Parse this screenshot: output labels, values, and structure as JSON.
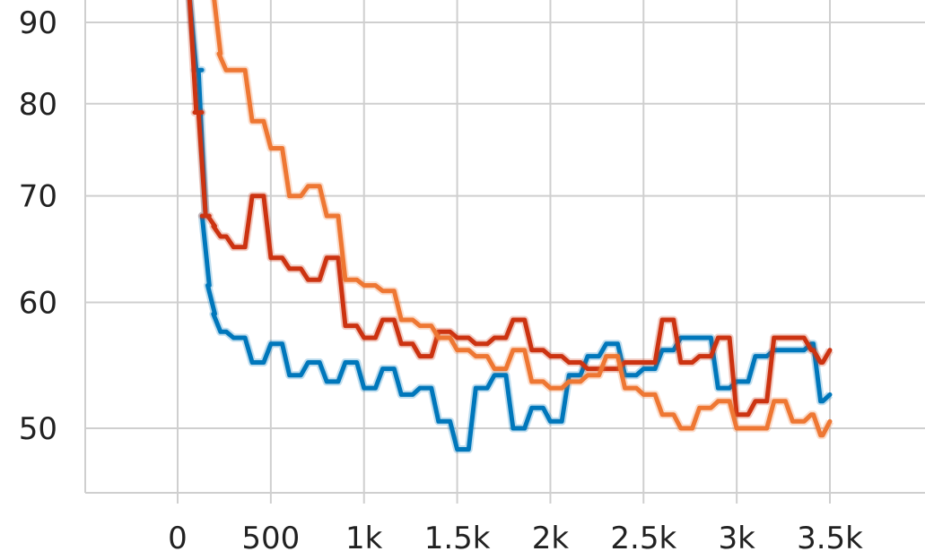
{
  "chart_data": {
    "type": "line",
    "title": "",
    "xlabel": "",
    "ylabel": "",
    "xlim": [
      -500,
      4000
    ],
    "ylim": [
      45,
      92
    ],
    "y_scale": "log",
    "grid": true,
    "x_ticks": [
      0,
      500,
      1000,
      1500,
      2000,
      2500,
      3000,
      3500
    ],
    "x_tick_labels": [
      "0",
      "500",
      "1k",
      "1.5k",
      "2k",
      "2.5k",
      "3k",
      "3.5k"
    ],
    "y_ticks": [
      50,
      60,
      70,
      80,
      90
    ],
    "y_tick_labels": [
      "50",
      "60",
      "70",
      "80",
      "90"
    ],
    "series": [
      {
        "color": "#0077bb",
        "x": [
          80,
          100,
          130,
          150,
          170,
          200,
          230,
          300,
          400,
          500,
          600,
          700,
          800,
          900,
          1000,
          1100,
          1200,
          1300,
          1400,
          1450,
          1500,
          1550,
          1600,
          1700,
          1800,
          1900,
          2000,
          2100,
          2200,
          2300,
          2400,
          2500,
          2600,
          2700,
          2800,
          2900,
          3000,
          3100,
          3200,
          3300,
          3400,
          3450,
          3500
        ],
        "y": [
          94,
          84,
          84,
          68,
          61.5,
          59,
          57.5,
          57,
          55,
          56.5,
          54,
          55,
          53.5,
          55,
          53,
          54.5,
          52.5,
          53,
          50.5,
          50.5,
          48.5,
          48.5,
          53,
          54,
          50,
          51.5,
          50.5,
          54,
          55.5,
          56.5,
          54,
          54.5,
          56,
          57,
          57,
          53,
          53.5,
          55.5,
          56,
          56,
          56.5,
          52,
          52.5
        ]
      },
      {
        "color": "#cc3311",
        "x": [
          80,
          100,
          130,
          150,
          170,
          200,
          230,
          300,
          400,
          500,
          600,
          700,
          800,
          900,
          1000,
          1100,
          1200,
          1300,
          1400,
          1500,
          1600,
          1700,
          1800,
          1900,
          2000,
          2100,
          2200,
          2300,
          2400,
          2500,
          2600,
          2700,
          2800,
          2900,
          3000,
          3100,
          3200,
          3300,
          3400,
          3450,
          3500
        ],
        "y": [
          94,
          79,
          79,
          68,
          68,
          67,
          66,
          65,
          70,
          64,
          63,
          62,
          64,
          58,
          57,
          58.5,
          56.5,
          55.5,
          57.5,
          57,
          56.5,
          57,
          58.5,
          56,
          55.5,
          55,
          54.5,
          54.5,
          55,
          55,
          58.5,
          55,
          55.5,
          57,
          51,
          52,
          57,
          57,
          56,
          55,
          56
        ]
      },
      {
        "color": "#ee7733",
        "x": [
          200,
          230,
          260,
          300,
          400,
          500,
          600,
          700,
          800,
          900,
          1000,
          1100,
          1200,
          1300,
          1400,
          1500,
          1600,
          1700,
          1800,
          1900,
          2000,
          2100,
          2200,
          2300,
          2400,
          2500,
          2600,
          2700,
          2800,
          2900,
          3000,
          3100,
          3200,
          3300,
          3400,
          3450,
          3500
        ],
        "y": [
          94,
          86,
          84,
          84,
          78,
          75,
          70,
          71,
          68,
          62,
          61.5,
          61,
          58.5,
          58,
          57,
          56,
          55.5,
          54.5,
          56,
          53.5,
          53,
          53.5,
          54,
          55.5,
          53,
          52.5,
          51,
          50,
          51.5,
          52,
          50,
          50,
          52,
          50.5,
          51,
          49.5,
          50.5
        ]
      }
    ]
  }
}
